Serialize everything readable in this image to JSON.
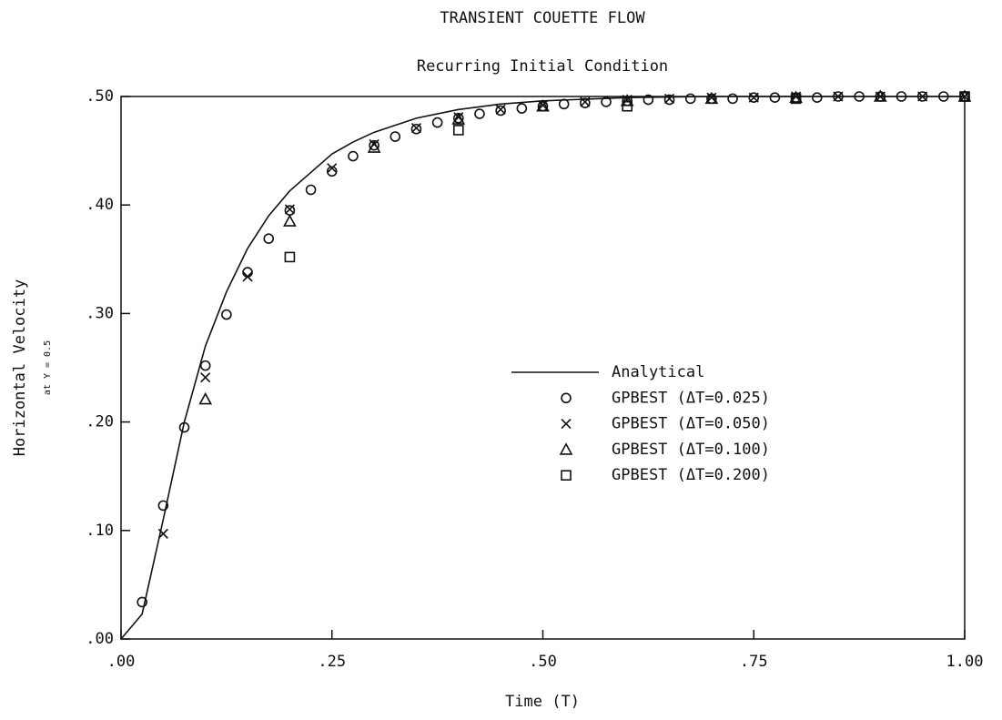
{
  "chart_data": {
    "type": "line",
    "title": "TRANSIENT COUETTE FLOW",
    "subtitle": "Recurring Initial Condition",
    "x_label": "Time (T)",
    "y_label": "Horizontal Velocity",
    "y_sublabel": "at Y = 0.5",
    "xlim": [
      0,
      1
    ],
    "ylim": [
      0,
      0.5
    ],
    "xticks": [
      {
        "value": 0,
        "label": ".00"
      },
      {
        "value": 0.25,
        "label": ".25"
      },
      {
        "value": 0.5,
        "label": ".50"
      },
      {
        "value": 0.75,
        "label": ".75"
      },
      {
        "value": 1,
        "label": "1.00"
      }
    ],
    "yticks": [
      {
        "value": 0,
        "label": ".00"
      },
      {
        "value": 0.1,
        "label": ".10"
      },
      {
        "value": 0.2,
        "label": ".20"
      },
      {
        "value": 0.3,
        "label": ".30"
      },
      {
        "value": 0.4,
        "label": ".40"
      },
      {
        "value": 0.5,
        "label": ".50"
      }
    ],
    "legend": "center-right",
    "series": [
      {
        "name": "Analytical",
        "color": "#111111",
        "x": [
          0,
          0.025,
          0.05,
          0.075,
          0.1,
          0.125,
          0.15,
          0.175,
          0.2,
          0.225,
          0.25,
          0.275,
          0.3,
          0.35,
          0.4,
          0.45,
          0.5,
          0.6,
          0.7,
          1
        ],
        "values": [
          0,
          0.023,
          0.11,
          0.2,
          0.27,
          0.32,
          0.36,
          0.39,
          0.413,
          0.43,
          0.447,
          0.458,
          0.467,
          0.48,
          0.488,
          0.493,
          0.496,
          0.499,
          0.5,
          0.5
        ]
      },
      {
        "name": "GPBEST (ΔT=0.025)",
        "color": "#111111",
        "marker": "circle",
        "x": [
          0.025,
          0.05,
          0.075,
          0.1,
          0.125,
          0.15,
          0.175,
          0.2,
          0.225,
          0.25,
          0.275,
          0.3,
          0.325,
          0.35,
          0.375,
          0.4,
          0.425,
          0.45,
          0.475,
          0.5,
          0.525,
          0.55,
          0.575,
          0.6,
          0.625,
          0.65,
          0.675,
          0.7,
          0.725,
          0.75,
          0.775,
          0.8,
          0.825,
          0.85,
          0.875,
          0.9,
          0.925,
          0.95,
          0.975,
          1
        ],
        "values": [
          0.034,
          0.123,
          0.195,
          0.252,
          0.299,
          0.338,
          0.369,
          0.395,
          0.414,
          0.431,
          0.445,
          0.455,
          0.463,
          0.47,
          0.476,
          0.48,
          0.484,
          0.487,
          0.489,
          0.491,
          0.493,
          0.494,
          0.495,
          0.496,
          0.497,
          0.497,
          0.498,
          0.498,
          0.498,
          0.499,
          0.499,
          0.499,
          0.499,
          0.5,
          0.5,
          0.5,
          0.5,
          0.5,
          0.5,
          0.5
        ]
      },
      {
        "name": "GPBEST (ΔT=0.050)",
        "color": "#111111",
        "marker": "x",
        "x": [
          0.05,
          0.1,
          0.15,
          0.2,
          0.25,
          0.3,
          0.35,
          0.4,
          0.45,
          0.5,
          0.55,
          0.6,
          0.65,
          0.7,
          0.75,
          0.8,
          0.85,
          0.9,
          0.95,
          1
        ],
        "values": [
          0.097,
          0.241,
          0.334,
          0.396,
          0.434,
          0.456,
          0.471,
          0.481,
          0.488,
          0.492,
          0.495,
          0.497,
          0.498,
          0.499,
          0.499,
          0.5,
          0.5,
          0.5,
          0.5,
          0.5
        ]
      },
      {
        "name": "GPBEST (ΔT=0.100)",
        "color": "#111111",
        "marker": "triangle",
        "x": [
          0.1,
          0.2,
          0.3,
          0.4,
          0.5,
          0.6,
          0.7,
          0.8,
          0.9,
          1
        ],
        "values": [
          0.221,
          0.385,
          0.453,
          0.479,
          0.491,
          0.496,
          0.498,
          0.499,
          0.5,
          0.5
        ]
      },
      {
        "name": "GPBEST (ΔT=0.200)",
        "color": "#111111",
        "marker": "square",
        "x": [
          0.2,
          0.4,
          0.6,
          0.8,
          1
        ],
        "values": [
          0.352,
          0.469,
          0.491,
          0.498,
          0.5
        ]
      }
    ]
  }
}
